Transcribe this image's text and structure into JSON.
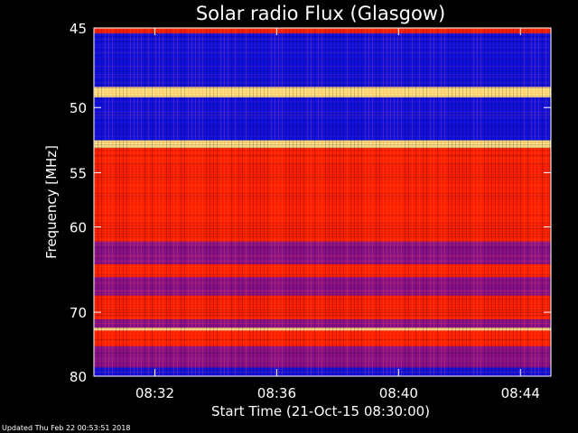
{
  "chart_data": {
    "type": "heatmap",
    "title": "Solar radio Flux (Glasgow)",
    "xlabel": "Start Time (21-Oct-15 08:30:00)",
    "ylabel": "Frequency [MHz]",
    "y_ticks": [
      45,
      50,
      55,
      60,
      70,
      80
    ],
    "y_scale": "reciprocal",
    "ylim": [
      45,
      80
    ],
    "x_ticks": [
      "08:32",
      "08:36",
      "08:40",
      "08:44"
    ],
    "x_tick_minutes": [
      2,
      6,
      10,
      14
    ],
    "xlim_minutes": [
      0,
      15
    ],
    "colors": {
      "low": "#1010e0",
      "mid": "#8a1088",
      "high": "#ff2000",
      "peak": "#ffe080"
    },
    "bands": [
      {
        "from_mhz": 45.0,
        "to_mhz": 45.3,
        "level": "high"
      },
      {
        "from_mhz": 45.3,
        "to_mhz": 48.6,
        "level": "low"
      },
      {
        "from_mhz": 48.6,
        "to_mhz": 49.3,
        "level": "peak"
      },
      {
        "from_mhz": 49.3,
        "to_mhz": 52.4,
        "level": "low"
      },
      {
        "from_mhz": 52.4,
        "to_mhz": 53.0,
        "level": "peak"
      },
      {
        "from_mhz": 53.0,
        "to_mhz": 54.8,
        "level": "high"
      },
      {
        "from_mhz": 54.8,
        "to_mhz": 57.0,
        "level": "high"
      },
      {
        "from_mhz": 57.0,
        "to_mhz": 61.5,
        "level": "high"
      },
      {
        "from_mhz": 61.5,
        "to_mhz": 64.0,
        "level": "mid"
      },
      {
        "from_mhz": 64.0,
        "to_mhz": 65.5,
        "level": "high"
      },
      {
        "from_mhz": 65.5,
        "to_mhz": 67.8,
        "level": "mid"
      },
      {
        "from_mhz": 67.8,
        "to_mhz": 71.0,
        "level": "high"
      },
      {
        "from_mhz": 71.0,
        "to_mhz": 72.2,
        "level": "mid"
      },
      {
        "from_mhz": 72.2,
        "to_mhz": 72.6,
        "level": "peak"
      },
      {
        "from_mhz": 72.6,
        "to_mhz": 75.0,
        "level": "high"
      },
      {
        "from_mhz": 75.0,
        "to_mhz": 78.5,
        "level": "mid"
      },
      {
        "from_mhz": 78.5,
        "to_mhz": 80.0,
        "level": "low"
      }
    ]
  },
  "footer": "Updated Thu Feb 22 00:53:51 2018"
}
